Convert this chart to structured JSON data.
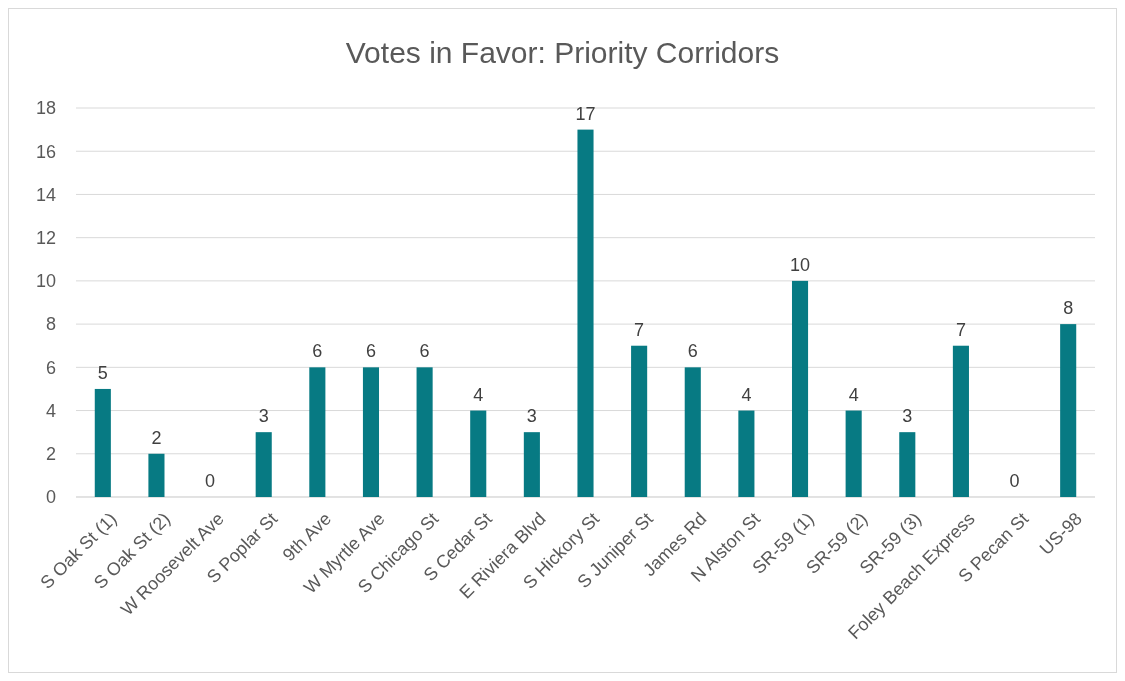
{
  "chart_data": {
    "type": "bar",
    "title": "Votes in Favor: Priority Corridors",
    "categories": [
      "S Oak St (1)",
      "S Oak St (2)",
      "W Roosevelt Ave",
      "S Poplar St",
      "9th Ave",
      "W Myrtle Ave",
      "S Chicago St",
      "S Cedar St",
      "E Riviera Blvd",
      "S Hickory St",
      "S Juniper St",
      "James Rd",
      "N Alston St",
      "SR-59 (1)",
      "SR-59 (2)",
      "SR-59 (3)",
      "Foley Beach Express",
      "S Pecan St",
      "US-98"
    ],
    "values": [
      5,
      2,
      0,
      3,
      6,
      6,
      6,
      4,
      3,
      17,
      7,
      6,
      4,
      10,
      4,
      3,
      7,
      0,
      8
    ],
    "color": "#077a83",
    "ylim": [
      0,
      18
    ],
    "yticks": [
      0,
      2,
      4,
      6,
      8,
      10,
      12,
      14,
      16,
      18
    ],
    "grid": "y",
    "data_labels": true
  }
}
